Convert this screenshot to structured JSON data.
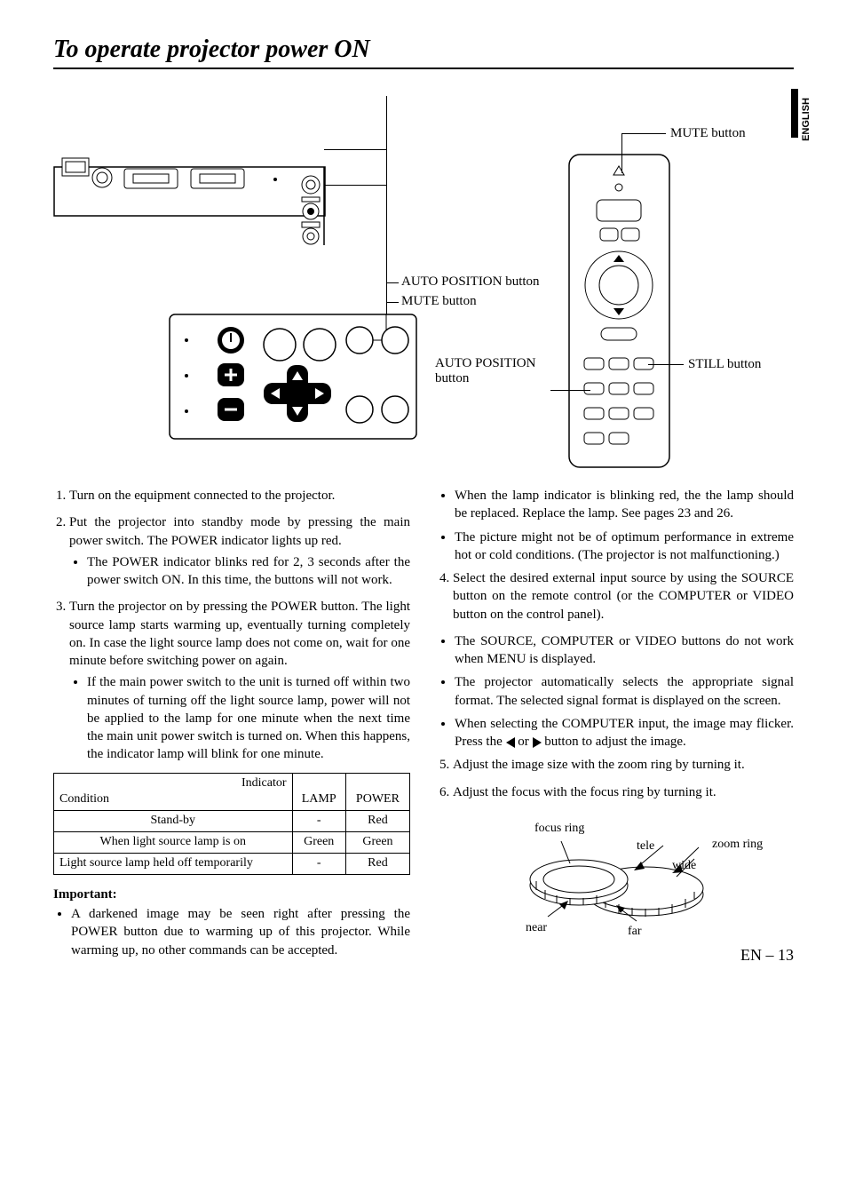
{
  "title": "To operate projector power ON",
  "side_label": "ENGLISH",
  "callouts": {
    "mute_button_remote": "MUTE button",
    "still_button": "STILL button",
    "auto_position_remote": "AUTO POSITION\nbutton",
    "auto_position_panel": "AUTO POSITION button",
    "mute_button_panel": "MUTE button"
  },
  "left_column": {
    "items": [
      {
        "num": "1.",
        "text": "Turn on the equipment connected to the projector."
      },
      {
        "num": "2.",
        "text": "Put the projector into standby mode by pressing the main power switch. The POWER indicator lights up red.",
        "bullets": [
          "The POWER indicator blinks red for 2, 3 seconds after the power switch ON. In this time, the buttons will not work."
        ]
      },
      {
        "num": "3.",
        "text": "Turn the projector on by pressing the POWER button. The light source lamp starts warming up, eventually turning completely on.  In case the light source lamp does not come on, wait for one minute before switching power on again.",
        "bullets": [
          "If the main power switch to the unit is turned off within two minutes of turning off the light source lamp, power will not be applied to the lamp for one minute when the next time the main unit power switch is turned on. When this happens, the indicator lamp will blink for one minute."
        ]
      }
    ],
    "table": {
      "header_condition_label": "Condition",
      "header_indicator_label": "Indicator",
      "cols": [
        "LAMP",
        "POWER"
      ],
      "rows": [
        {
          "condition": "Stand-by",
          "lamp": "-",
          "power": "Red"
        },
        {
          "condition": "When light source lamp is on",
          "lamp": "Green",
          "power": "Green"
        },
        {
          "condition": "Light source lamp held off temporarily",
          "lamp": "-",
          "power": "Red"
        }
      ]
    },
    "important_label": "Important:",
    "important_bullets": [
      "A darkened image may be seen right after pressing the POWER button due to warming up of this projector. While warming up, no other commands can be accepted."
    ]
  },
  "right_column": {
    "top_bullets": [
      "When the lamp indicator is blinking red, the the lamp should be replaced.  Replace the lamp. See pages 23 and 26.",
      "The picture might not be of optimum performance in extreme hot or cold conditions. (The projector is not malfunctioning.)"
    ],
    "item4": {
      "num": "4.",
      "text": "Select the desired external input source by using the SOURCE button on the remote control (or the COMPUTER or VIDEO button on the control panel).",
      "bullets": [
        "The SOURCE, COMPUTER or VIDEO buttons do not work when MENU is displayed.",
        "The projector automatically selects the appropriate signal format. The selected signal format is displayed on the screen.",
        "When selecting the COMPUTER input, the image may  flicker.  Press the {L} or {R} button to adjust the image."
      ]
    },
    "item5": {
      "num": "5.",
      "text": " Adjust the image size with the zoom ring by turning it."
    },
    "item6": {
      "num": "6.",
      "text": "Adjust the focus with the focus ring by turning it."
    },
    "lens_labels": {
      "focus_ring": "focus ring",
      "zoom_ring": "zoom ring",
      "tele": "tele",
      "wide": "wide",
      "near": "near",
      "far": "far"
    }
  },
  "page_number": "EN – 13"
}
